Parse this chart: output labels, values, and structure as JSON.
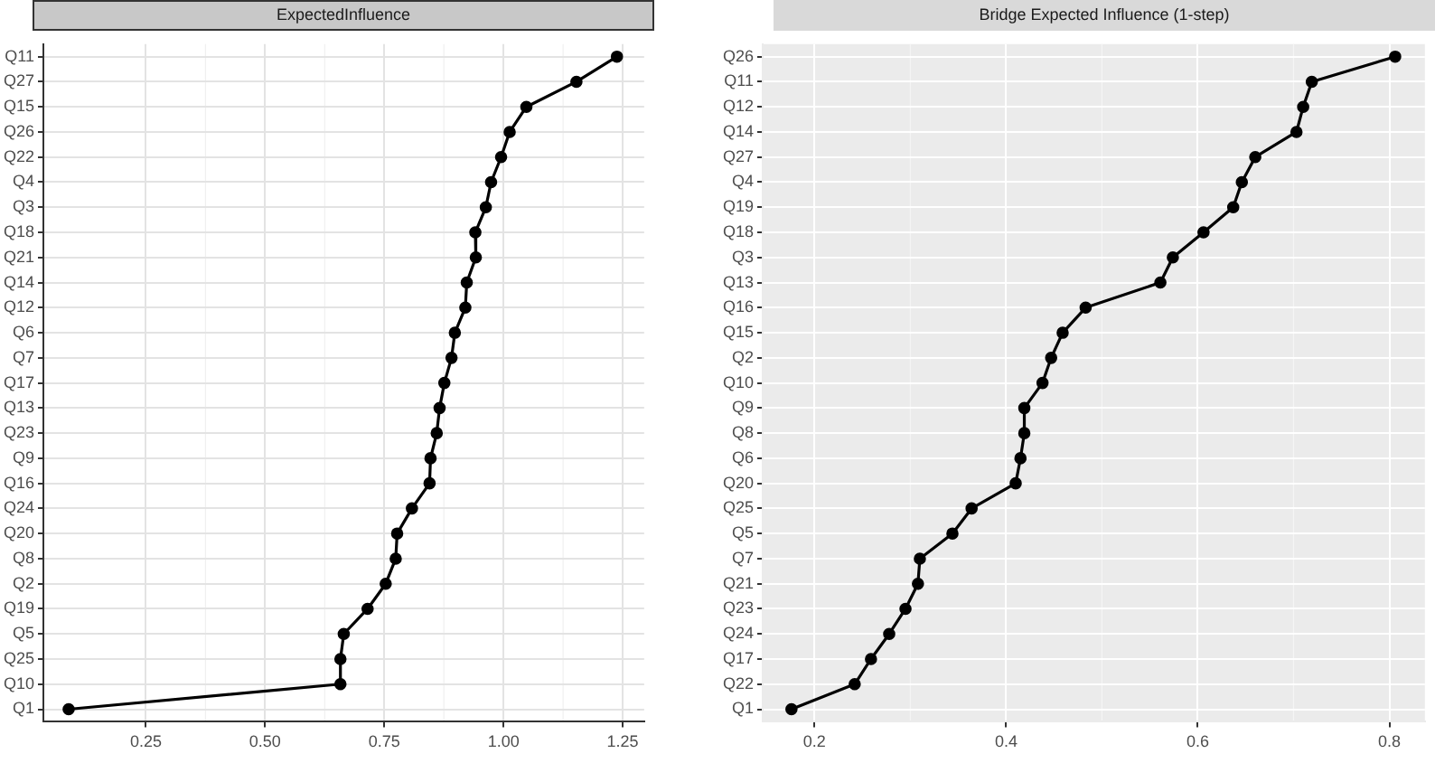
{
  "chart_data": [
    {
      "type": "line",
      "orientation": "horizontal",
      "title": "ExpectedInfluence",
      "categories": [
        "Q11",
        "Q27",
        "Q15",
        "Q26",
        "Q22",
        "Q4",
        "Q3",
        "Q18",
        "Q21",
        "Q14",
        "Q12",
        "Q6",
        "Q7",
        "Q17",
        "Q13",
        "Q23",
        "Q9",
        "Q16",
        "Q24",
        "Q20",
        "Q8",
        "Q2",
        "Q19",
        "Q5",
        "Q25",
        "Q10",
        "Q1"
      ],
      "series": [
        {
          "color": "#000000",
          "values": [
            1.238,
            1.153,
            1.048,
            1.013,
            0.995,
            0.974,
            0.963,
            0.941,
            0.942,
            0.923,
            0.92,
            0.898,
            0.891,
            0.876,
            0.866,
            0.86,
            0.847,
            0.845,
            0.808,
            0.777,
            0.774,
            0.753,
            0.715,
            0.665,
            0.658,
            0.658,
            0.088
          ]
        }
      ],
      "xlim": [
        0.035,
        1.295
      ],
      "xticks": [
        {
          "value": 0.25,
          "label": "0.25"
        },
        {
          "value": 0.5,
          "label": "0.50"
        },
        {
          "value": 0.75,
          "label": "0.75"
        },
        {
          "value": 1,
          "label": "1.00"
        },
        {
          "value": 1.25,
          "label": "1.25"
        }
      ],
      "grid": true,
      "marker": "circle",
      "line_style": "solid",
      "legend": false
    },
    {
      "type": "line",
      "orientation": "horizontal",
      "title": "Bridge Expected Influence (1-step)",
      "categories": [
        "Q26",
        "Q11",
        "Q12",
        "Q14",
        "Q27",
        "Q4",
        "Q19",
        "Q18",
        "Q3",
        "Q13",
        "Q16",
        "Q15",
        "Q2",
        "Q10",
        "Q9",
        "Q8",
        "Q6",
        "Q20",
        "Q25",
        "Q5",
        "Q7",
        "Q21",
        "Q23",
        "Q24",
        "Q17",
        "Q22",
        "Q1"
      ],
      "series": [
        {
          "color": "#000000",
          "values": [
            0.806,
            0.719,
            0.71,
            0.703,
            0.66,
            0.646,
            0.637,
            0.606,
            0.574,
            0.561,
            0.483,
            0.459,
            0.447,
            0.438,
            0.419,
            0.419,
            0.415,
            0.41,
            0.364,
            0.344,
            0.31,
            0.308,
            0.295,
            0.278,
            0.259,
            0.242,
            0.176
          ]
        }
      ],
      "xlim": [
        0.146,
        0.837
      ],
      "xticks": [
        0.2,
        0.4,
        0.6,
        0.8
      ],
      "grid": true,
      "marker": "circle",
      "line_style": "solid",
      "legend": false
    }
  ]
}
